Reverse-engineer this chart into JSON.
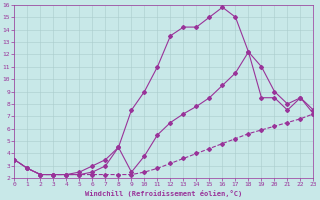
{
  "background_color": "#c8e8e8",
  "line_color": "#993399",
  "xlabel": "Windchill (Refroidissement éolien,°C)",
  "xlim": [
    0,
    23
  ],
  "ylim": [
    2,
    16
  ],
  "xticks": [
    0,
    1,
    2,
    3,
    4,
    5,
    6,
    7,
    8,
    9,
    10,
    11,
    12,
    13,
    14,
    15,
    16,
    17,
    18,
    19,
    20,
    21,
    22,
    23
  ],
  "yticks": [
    2,
    3,
    4,
    5,
    6,
    7,
    8,
    9,
    10,
    11,
    12,
    13,
    14,
    15,
    16
  ],
  "series": [
    {
      "x": [
        0,
        1,
        2,
        3,
        4,
        5,
        6,
        7,
        8,
        9,
        10,
        11,
        12,
        13,
        14,
        15,
        16,
        17,
        18,
        19,
        20,
        21,
        22,
        23
      ],
      "y": [
        3.5,
        2.8,
        2.3,
        2.3,
        2.3,
        2.3,
        2.3,
        2.3,
        2.3,
        2.3,
        2.5,
        2.8,
        3.2,
        3.6,
        4.0,
        4.4,
        4.8,
        5.2,
        5.6,
        5.9,
        6.2,
        6.5,
        6.8,
        7.2
      ],
      "linestyle": "--",
      "marker": "D",
      "markersize": 2
    },
    {
      "x": [
        0,
        1,
        2,
        3,
        4,
        5,
        6,
        7,
        8,
        9,
        10,
        11,
        12,
        13,
        14,
        15,
        16,
        17,
        18,
        19,
        20,
        21,
        22,
        23
      ],
      "y": [
        3.5,
        2.8,
        2.3,
        2.3,
        2.3,
        2.3,
        2.5,
        3.0,
        4.5,
        2.5,
        3.8,
        5.5,
        6.5,
        7.2,
        7.8,
        8.5,
        9.5,
        10.5,
        12.2,
        11.0,
        9.0,
        8.0,
        8.5,
        7.2
      ],
      "linestyle": "-",
      "marker": "D",
      "markersize": 2
    },
    {
      "x": [
        0,
        1,
        2,
        3,
        4,
        5,
        6,
        7,
        8,
        9,
        10,
        11,
        12,
        13,
        14,
        15,
        16,
        17,
        18,
        19,
        20,
        21,
        22,
        23
      ],
      "y": [
        3.5,
        2.8,
        2.3,
        2.3,
        2.3,
        2.5,
        3.0,
        3.5,
        4.5,
        7.5,
        9.0,
        11.0,
        13.5,
        14.2,
        14.2,
        15.0,
        15.8,
        15.0,
        12.2,
        8.5,
        8.5,
        7.5,
        8.5,
        7.5
      ],
      "linestyle": "-",
      "marker": "D",
      "markersize": 2
    }
  ]
}
